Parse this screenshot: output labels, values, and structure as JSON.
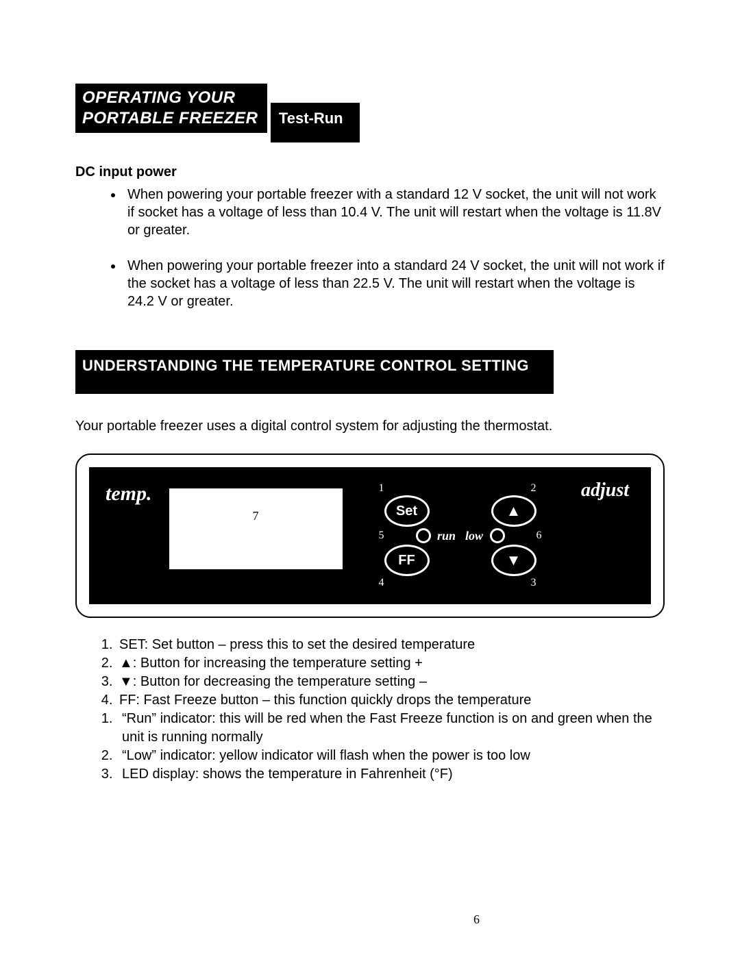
{
  "header": {
    "line1": "OPERATING YOUR",
    "line2": "PORTABLE FREEZER"
  },
  "testrun": {
    "label": "Test-Run"
  },
  "dc": {
    "heading": "DC input power",
    "b1": "When powering your portable freezer with a standard 12 V socket, the unit will not work if socket has a voltage of less than 10.4 V. The unit will restart when the voltage is 11.8V or greater.",
    "b2": "When powering your portable freezer into a standard 24 V socket, the unit will not work if the socket has a voltage of less than 22.5 V. The unit will restart when the voltage is 24.2 V or greater."
  },
  "section2": {
    "title": "UNDERSTANDING THE TEMPERATURE CONTROL SETTING"
  },
  "intro": "Your portable freezer uses a digital control system for adjusting the thermostat.",
  "panel": {
    "temp_label": "temp.",
    "adjust_label": "adjust",
    "display_num": "7",
    "set": "Set",
    "ff": "FF",
    "up": "▲",
    "down": "▼",
    "run": "run",
    "low": "low",
    "n1": "1",
    "n2": "2",
    "n3": "3",
    "n4": "4",
    "n5": "5",
    "n6": "6"
  },
  "descA": [
    "SET: Set button – press this to set the desired temperature",
    "▲: Button for increasing the temperature setting +",
    "▼: Button for decreasing the temperature setting –",
    "FF: Fast Freeze button – this function quickly drops the temperature"
  ],
  "descB": [
    "“Run” indicator:  this will be red when the Fast Freeze function is on and green when the unit is running normally",
    "“Low” indicator: yellow indicator will flash when the power is too low",
    "LED display: shows the temperature in Fahrenheit (°F)"
  ],
  "page": "6"
}
